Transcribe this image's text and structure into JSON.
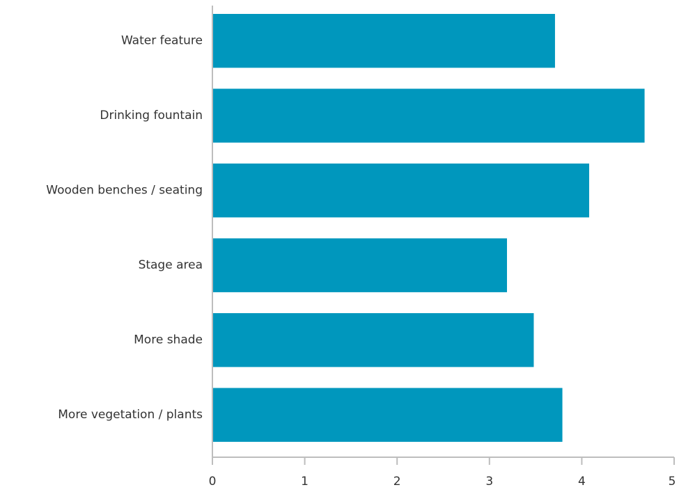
{
  "chart_data": {
    "type": "bar",
    "orientation": "horizontal",
    "categories": [
      "Water feature",
      "Drinking fountain",
      "Wooden benches / seating",
      "Stage area",
      "More shade",
      "More vegetation / plants"
    ],
    "values": [
      3.71,
      4.68,
      4.08,
      3.19,
      3.48,
      3.79
    ],
    "xlim": [
      0,
      5
    ],
    "xticks": [
      "0",
      "1",
      "2",
      "3",
      "4",
      "5"
    ],
    "title": "",
    "xlabel": "",
    "ylabel": "",
    "grid": false,
    "bar_color": "#0097bd"
  }
}
